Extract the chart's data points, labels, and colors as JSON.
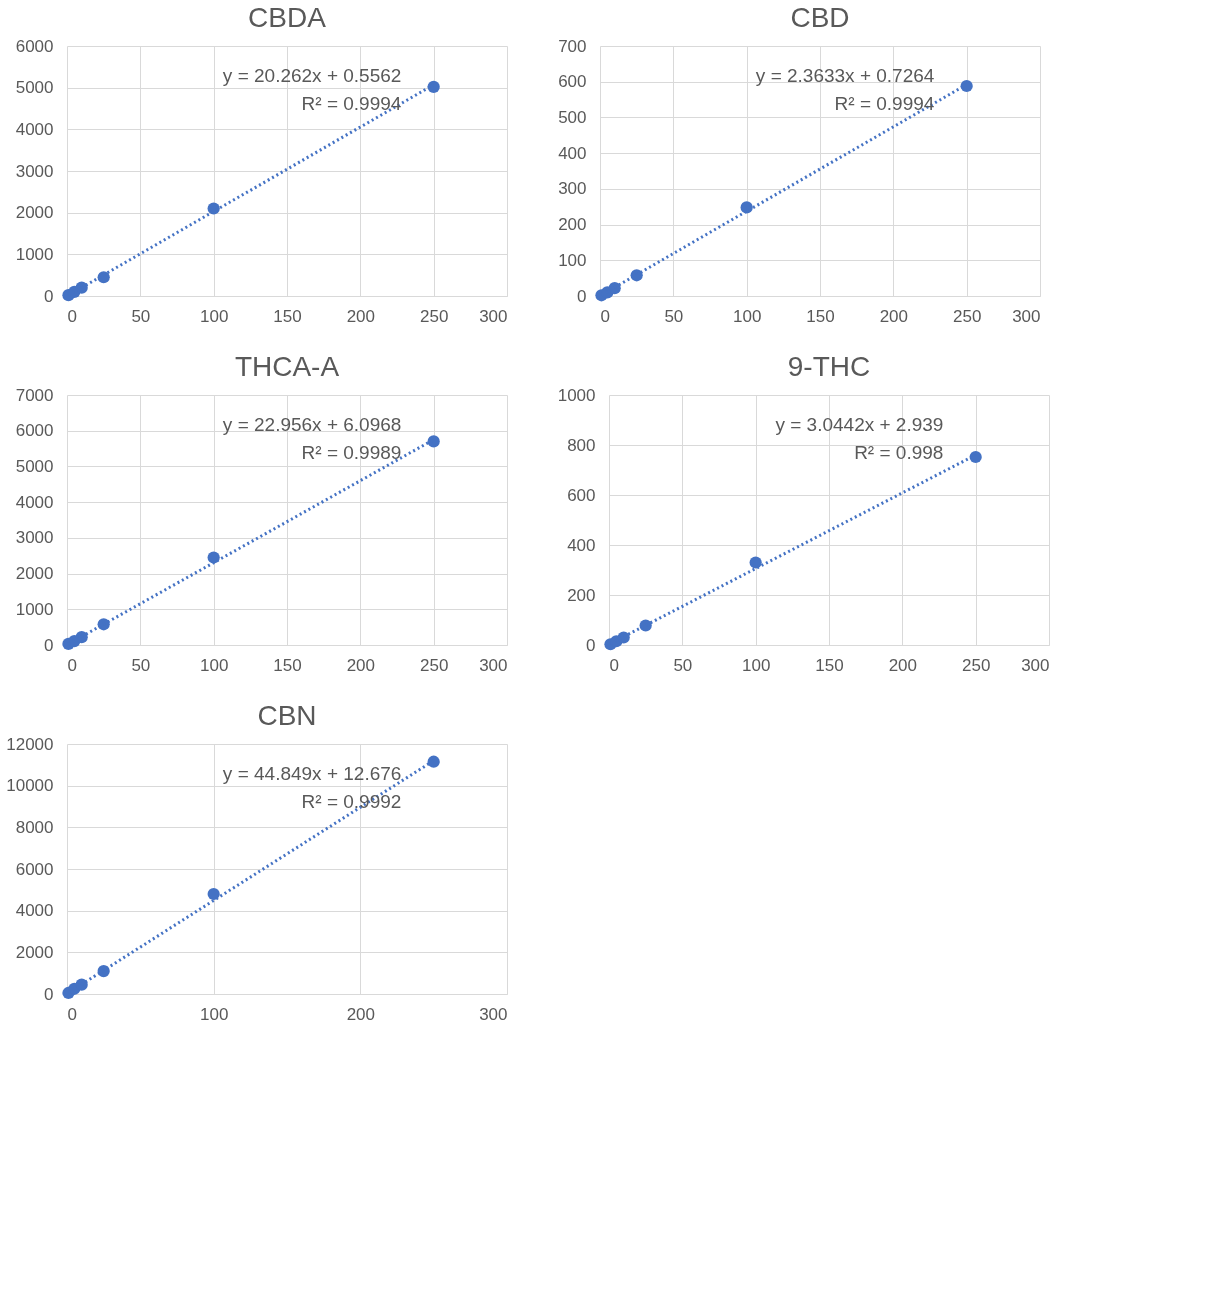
{
  "chart_data": [
    {
      "type": "scatter",
      "title": "CBDA",
      "xlim": [
        0,
        300
      ],
      "xticks": [
        0,
        50,
        100,
        150,
        200,
        250,
        300
      ],
      "ylim": [
        0,
        6000
      ],
      "yticks": [
        0,
        1000,
        2000,
        3000,
        4000,
        5000,
        6000
      ],
      "grid": true,
      "marker": "circle",
      "series": [
        {
          "type": "scatter",
          "color": "#4472c4",
          "x": [
            1,
            5,
            10,
            25,
            100,
            250
          ],
          "values": [
            20,
            100,
            200,
            450,
            2100,
            5020
          ]
        },
        {
          "type": "line",
          "color": "#4472c4",
          "line_style": "dotted",
          "marker": "none",
          "x": [
            1,
            250
          ],
          "values": [
            20,
            5070
          ]
        }
      ],
      "annotations": [
        "y = 20.262x + 0.5562",
        "R² = 0.9994"
      ]
    },
    {
      "type": "scatter",
      "title": "CBD",
      "xlim": [
        0,
        300
      ],
      "xticks": [
        0,
        50,
        100,
        150,
        200,
        250,
        300
      ],
      "ylim": [
        0,
        700
      ],
      "yticks": [
        0,
        100,
        200,
        300,
        400,
        500,
        600,
        700
      ],
      "grid": true,
      "marker": "circle",
      "series": [
        {
          "type": "scatter",
          "color": "#4472c4",
          "x": [
            1,
            5,
            10,
            25,
            100,
            250
          ],
          "values": [
            2,
            10,
            22,
            58,
            248,
            588
          ]
        },
        {
          "type": "line",
          "color": "#4472c4",
          "line_style": "dotted",
          "marker": "none",
          "x": [
            1,
            250
          ],
          "values": [
            3,
            592
          ]
        }
      ],
      "annotations": [
        "y = 2.3633x + 0.7264",
        "R² = 0.9994"
      ]
    },
    {
      "type": "scatter",
      "title": "THCA-A",
      "xlim": [
        0,
        300
      ],
      "xticks": [
        0,
        50,
        100,
        150,
        200,
        250,
        300
      ],
      "ylim": [
        0,
        7000
      ],
      "yticks": [
        0,
        1000,
        2000,
        3000,
        4000,
        5000,
        6000,
        7000
      ],
      "grid": true,
      "marker": "circle",
      "series": [
        {
          "type": "scatter",
          "color": "#4472c4",
          "x": [
            1,
            5,
            10,
            25,
            100,
            250
          ],
          "values": [
            30,
            110,
            220,
            580,
            2450,
            5700
          ]
        },
        {
          "type": "line",
          "color": "#4472c4",
          "line_style": "dotted",
          "marker": "none",
          "x": [
            1,
            250
          ],
          "values": [
            30,
            5750
          ]
        }
      ],
      "annotations": [
        "y = 22.956x + 6.0968",
        "R² = 0.9989"
      ]
    },
    {
      "type": "scatter",
      "title": "9-THC",
      "xlim": [
        0,
        300
      ],
      "xticks": [
        0,
        50,
        100,
        150,
        200,
        250,
        300
      ],
      "ylim": [
        0,
        1000
      ],
      "yticks": [
        0,
        200,
        400,
        600,
        800,
        1000
      ],
      "grid": true,
      "marker": "circle",
      "series": [
        {
          "type": "scatter",
          "color": "#4472c4",
          "x": [
            1,
            5,
            10,
            25,
            100,
            250
          ],
          "values": [
            3,
            15,
            30,
            78,
            330,
            752
          ]
        },
        {
          "type": "line",
          "color": "#4472c4",
          "line_style": "dotted",
          "marker": "none",
          "x": [
            1,
            250
          ],
          "values": [
            6,
            760
          ]
        }
      ],
      "annotations": [
        "y = 3.0442x + 2.939",
        "R² = 0.998"
      ]
    },
    {
      "type": "scatter",
      "title": "CBN",
      "xlim": [
        0,
        300
      ],
      "xticks": [
        0,
        100,
        200,
        300
      ],
      "ylim": [
        0,
        12000
      ],
      "yticks": [
        0,
        2000,
        4000,
        6000,
        8000,
        10000,
        12000
      ],
      "grid": true,
      "marker": "circle",
      "series": [
        {
          "type": "scatter",
          "color": "#4472c4",
          "x": [
            1,
            5,
            10,
            25,
            100,
            250
          ],
          "values": [
            50,
            250,
            450,
            1100,
            4800,
            11150
          ]
        },
        {
          "type": "line",
          "color": "#4472c4",
          "line_style": "dotted",
          "marker": "none",
          "x": [
            1,
            250
          ],
          "values": [
            60,
            11200
          ]
        }
      ],
      "annotations": [
        "y = 44.849x + 12.676",
        "R² = 0.9992"
      ]
    }
  ]
}
